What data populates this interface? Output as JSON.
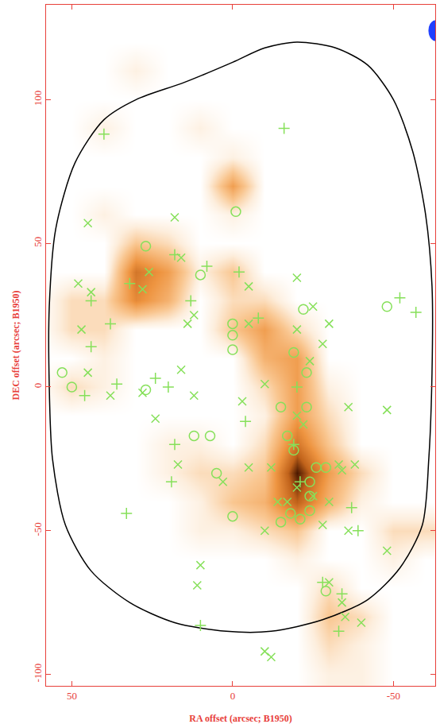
{
  "chart_data": {
    "type": "scatter",
    "xlabel": "RA offset (arcsec; B1950)",
    "ylabel": "DEC offset (arcsec; B1950)",
    "xlim": [
      58,
      -63
    ],
    "ylim": [
      -104,
      133
    ],
    "xticks": [
      50,
      0,
      -50
    ],
    "yticks": [
      -100,
      -50,
      0,
      50,
      100
    ],
    "grid": false,
    "intensity": {
      "x": [
        60,
        50,
        40,
        30,
        20,
        10,
        0,
        -10,
        -20,
        -30,
        -40,
        -50,
        -60
      ],
      "y": [
        -100,
        -90,
        -80,
        -70,
        -60,
        -50,
        -40,
        -30,
        -20,
        -10,
        0,
        10,
        20,
        30,
        40,
        50,
        60,
        70,
        80,
        90,
        100,
        110,
        120,
        130
      ],
      "zlim": [
        0,
        10
      ],
      "z": [
        [
          0,
          0,
          0,
          0,
          0,
          0,
          0,
          0,
          0,
          1,
          1,
          0,
          0
        ],
        [
          0,
          0,
          0,
          0,
          0,
          0,
          0,
          0,
          0,
          2,
          1,
          0,
          0
        ],
        [
          0,
          0,
          0,
          0,
          0,
          0,
          0,
          0,
          0,
          3,
          2,
          0,
          0
        ],
        [
          0,
          0,
          0,
          0,
          0,
          0,
          0,
          0,
          0,
          2,
          0,
          0,
          0
        ],
        [
          0,
          0,
          0,
          0,
          0,
          0,
          0,
          0,
          1,
          0,
          0,
          1,
          0
        ],
        [
          0,
          0,
          0,
          0,
          0,
          1,
          1,
          2,
          3,
          0,
          0,
          2,
          2
        ],
        [
          0,
          0,
          0,
          0,
          0,
          1,
          3,
          4,
          8,
          4,
          1,
          0,
          0
        ],
        [
          0,
          0,
          0,
          0,
          1,
          2,
          2,
          3,
          10,
          5,
          2,
          0,
          0
        ],
        [
          0,
          0,
          0,
          0,
          1,
          1,
          0,
          2,
          7,
          3,
          0,
          0,
          0
        ],
        [
          0,
          0,
          0,
          0,
          0,
          0,
          0,
          1,
          5,
          2,
          0,
          0,
          0
        ],
        [
          0,
          2,
          1,
          0,
          0,
          0,
          0,
          2,
          5,
          1,
          0,
          0,
          0
        ],
        [
          0,
          0,
          1,
          0,
          0,
          0,
          0,
          4,
          5,
          0,
          0,
          0,
          0
        ],
        [
          0,
          2,
          2,
          0,
          0,
          0,
          3,
          5,
          2,
          0,
          0,
          0,
          0
        ],
        [
          0,
          2,
          2,
          6,
          4,
          0,
          2,
          2,
          0,
          0,
          0,
          0,
          0
        ],
        [
          0,
          0,
          0,
          7,
          5,
          1,
          3,
          0,
          0,
          0,
          0,
          0,
          0
        ],
        [
          0,
          0,
          0,
          3,
          2,
          0,
          0,
          0,
          0,
          0,
          0,
          0,
          0
        ],
        [
          0,
          0,
          1,
          0,
          0,
          0,
          1,
          0,
          0,
          0,
          0,
          0,
          0
        ],
        [
          0,
          0,
          0,
          0,
          0,
          0,
          5,
          0,
          0,
          0,
          0,
          0,
          0
        ],
        [
          0,
          0,
          0,
          0,
          0,
          0,
          1,
          0,
          0,
          0,
          0,
          0,
          0
        ],
        [
          0,
          0,
          1,
          0,
          0,
          1,
          0,
          0,
          0,
          0,
          0,
          0,
          0
        ],
        [
          0,
          0,
          0,
          0,
          0,
          0,
          0,
          0,
          0,
          0,
          0,
          0,
          0
        ],
        [
          0,
          0,
          0,
          1,
          0,
          0,
          0,
          0,
          0,
          0,
          0,
          0,
          0
        ],
        [
          0,
          0,
          0,
          0,
          0,
          0,
          0,
          0,
          0,
          0,
          0,
          0,
          0
        ],
        [
          0,
          0,
          0,
          0,
          0,
          0,
          0,
          0,
          0,
          0,
          0,
          0,
          0
        ]
      ]
    },
    "beam": {
      "x": -63,
      "y": 124,
      "major": 7,
      "minor": 4,
      "color": "#1f3fff"
    },
    "series": [
      {
        "type": "line",
        "color": "#000000",
        "x": [
          -20,
          -32,
          -42,
          -50,
          -56,
          -60,
          -62,
          -62,
          -61,
          -59,
          -52,
          -42,
          -28,
          -12,
          2,
          18,
          32,
          44,
          52,
          56,
          57,
          57,
          55,
          49,
          40,
          30,
          15,
          0,
          -10,
          -20
        ],
        "y": [
          120,
          118,
          112,
          100,
          82,
          60,
          35,
          5,
          -25,
          -48,
          -63,
          -74,
          -81,
          -85,
          -85,
          -82,
          -75,
          -64,
          -48,
          -25,
          0,
          28,
          55,
          78,
          93,
          100,
          106,
          113,
          118,
          120
        ]
      },
      {
        "type": "scatter",
        "marker": "circle",
        "color": "#86e05a",
        "x": [
          27,
          10,
          -1,
          0,
          0,
          0,
          -22,
          -48,
          53,
          50,
          -15,
          -19,
          -23,
          -23,
          12,
          7,
          -17,
          -19,
          -26,
          -29,
          -24,
          -24,
          -24,
          -18,
          -21,
          -15,
          5,
          0,
          -29,
          27
        ],
        "y": [
          49,
          39,
          61,
          22,
          18,
          13,
          27,
          28,
          5,
          0,
          -7,
          12,
          5,
          -7,
          -17,
          -17,
          -17,
          -22,
          -28,
          -28,
          -33,
          -38,
          -43,
          -44,
          -46,
          -47,
          -30,
          -45,
          -71,
          -1
        ]
      },
      {
        "type": "scatter",
        "marker": "x",
        "color": "#86e05a",
        "x": [
          45,
          18,
          16,
          48,
          44,
          47,
          26,
          28,
          -5,
          -20,
          -25,
          -5,
          -20,
          -30,
          -28,
          -24,
          12,
          14,
          -10,
          16,
          12,
          38,
          45,
          -36,
          -48,
          -3,
          -20,
          28,
          24,
          17,
          -5,
          -12,
          -20,
          -25,
          -30,
          -33,
          -34,
          -38,
          -28,
          -36,
          -48,
          10,
          11,
          -10,
          -30,
          -34,
          -35,
          -40,
          -10,
          -12,
          -17,
          -14,
          3,
          -22
        ],
        "y": [
          57,
          59,
          45,
          36,
          33,
          20,
          40,
          34,
          35,
          38,
          28,
          22,
          20,
          22,
          15,
          9,
          25,
          22,
          1,
          6,
          -3,
          -3,
          5,
          -7,
          -8,
          -5,
          -10,
          -2,
          -11,
          -27,
          -28,
          -28,
          -35,
          -38,
          -40,
          -27,
          -29,
          -27,
          -48,
          -50,
          -57,
          -62,
          -69,
          -50,
          -68,
          -75,
          -80,
          -82,
          -92,
          -94,
          -40,
          -40,
          -33,
          -13
        ]
      },
      {
        "type": "scatter",
        "marker": "cross",
        "color": "#86e05a",
        "x": [
          40,
          -16,
          18,
          8,
          13,
          -2,
          44,
          38,
          44,
          32,
          20,
          24,
          -8,
          -20,
          46,
          36,
          18,
          19,
          -21,
          -19,
          33,
          -37,
          -39,
          -28,
          -33,
          -34,
          -52,
          -57,
          10,
          -4
        ],
        "y": [
          88,
          90,
          46,
          42,
          30,
          40,
          30,
          22,
          14,
          36,
          0,
          3,
          24,
          0,
          -3,
          1,
          -20,
          -33,
          -33,
          -20,
          -44,
          -42,
          -50,
          -68,
          -85,
          -72,
          31,
          26,
          -83,
          -12
        ]
      }
    ]
  }
}
